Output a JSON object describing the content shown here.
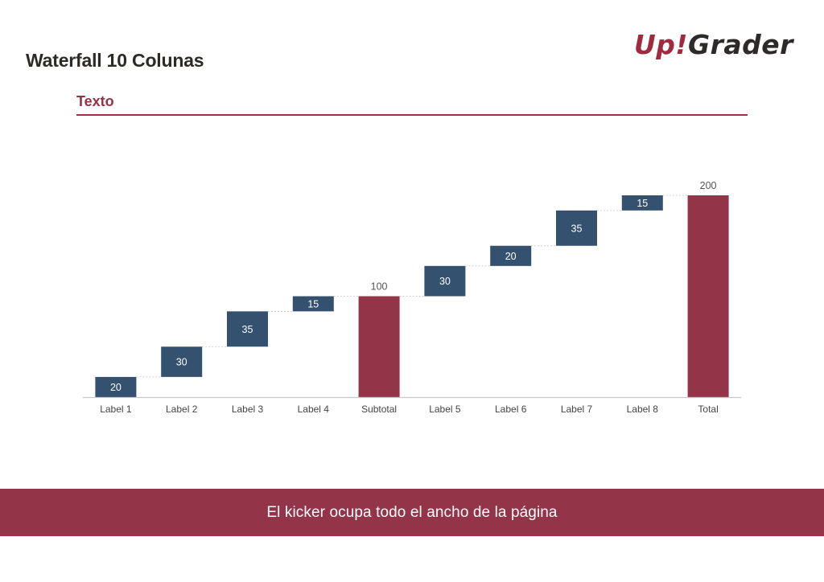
{
  "header": {
    "title": "Waterfall 10 Colunas",
    "logo_up": "Up",
    "logo_bang": "!",
    "logo_grader": "Grader",
    "subtitle": "Texto"
  },
  "kicker": {
    "text": "El kicker ocupa todo el ancho de la página"
  },
  "colors": {
    "increment": "#34526f",
    "total": "#943449",
    "accent": "#963247",
    "axis": "#c8c8c8",
    "connector": "#cfcfcf",
    "label_on_bar": "#ffffff",
    "label_text": "#555555"
  },
  "chart_data": {
    "type": "bar",
    "subtype": "waterfall",
    "categories": [
      "Label 1",
      "Label 2",
      "Label 3",
      "Label 4",
      "Subtotal",
      "Label 5",
      "Label 6",
      "Label 7",
      "Label 8",
      "Total"
    ],
    "values": [
      20,
      30,
      35,
      15,
      100,
      30,
      20,
      35,
      15,
      200
    ],
    "kinds": [
      "delta",
      "delta",
      "delta",
      "delta",
      "total",
      "delta",
      "delta",
      "delta",
      "delta",
      "total"
    ],
    "data_labels": [
      "20",
      "30",
      "35",
      "15",
      "100",
      "30",
      "20",
      "35",
      "15",
      "200"
    ],
    "ylim": [
      0,
      200
    ],
    "grid": false,
    "legend": "none",
    "connector_lines": true
  }
}
